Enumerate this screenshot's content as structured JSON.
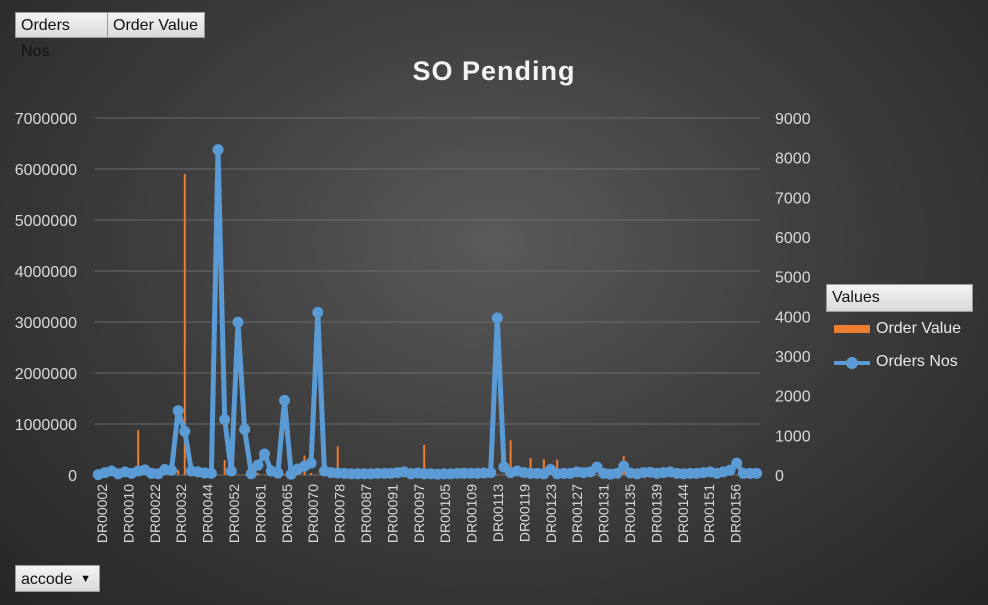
{
  "field_buttons": {
    "orders_nos": "Orders Nos",
    "order_value": "Order Value"
  },
  "filter": {
    "label": "accode",
    "arrow_icon": "dropdown-arrow-icon"
  },
  "legend": {
    "header": "Values",
    "items": [
      "Order Value",
      "Orders Nos"
    ]
  },
  "colors": {
    "order_value": "#ed7d31",
    "orders_nos": "#5b9bd5",
    "text": "#d9d9d9",
    "grid": "#6a6a6a"
  },
  "chart_data": {
    "type": "bar",
    "title": "SO Pending",
    "combo": "bar + line (secondary axis)",
    "xlabel": "",
    "ylabel": "",
    "y_ticks": [
      "0",
      "1000000",
      "2000000",
      "3000000",
      "4000000",
      "5000000",
      "6000000",
      "7000000"
    ],
    "y2_ticks": [
      "0",
      "1000",
      "2000",
      "3000",
      "4000",
      "5000",
      "6000",
      "7000",
      "8000",
      "9000"
    ],
    "ylim": [
      0,
      7000000
    ],
    "y2lim": [
      0,
      9000
    ],
    "x_tick_labels": [
      "DR00002",
      "DR00010",
      "DR00022",
      "DR00032",
      "DR00044",
      "DR00052",
      "DR00061",
      "DR00065",
      "DR00070",
      "DR00078",
      "DR00087",
      "DR00091",
      "DR00097",
      "DR00105",
      "DR00109",
      "DR00113",
      "DR00119",
      "DR00123",
      "DR00127",
      "DR00131",
      "DR00135",
      "DR00139",
      "DR00144",
      "DR00151",
      "DR00156"
    ],
    "point_count": 100,
    "series": [
      {
        "name": "Order Value",
        "axis": "primary",
        "values": [
          10000,
          20000,
          10000,
          15000,
          20000,
          10000,
          880000,
          60000,
          20000,
          10000,
          30000,
          60000,
          100000,
          5900000,
          90000,
          30000,
          20000,
          10000,
          10000,
          290000,
          20000,
          10000,
          10000,
          210000,
          40000,
          10000,
          20000,
          10000,
          20000,
          10000,
          10000,
          380000,
          40000,
          10000,
          20000,
          10000,
          560000,
          80000,
          10000,
          10000,
          10000,
          10000,
          10000,
          10000,
          10000,
          10000,
          10000,
          10000,
          10000,
          590000,
          10000,
          10000,
          10000,
          10000,
          10000,
          10000,
          10000,
          10000,
          10000,
          10000,
          10000,
          10000,
          680000,
          30000,
          10000,
          330000,
          10000,
          310000,
          10000,
          300000,
          10000,
          10000,
          10000,
          10000,
          10000,
          10000,
          10000,
          10000,
          10000,
          370000,
          10000,
          10000,
          10000,
          10000,
          10000,
          10000,
          10000,
          10000,
          10000,
          10000,
          10000,
          10000,
          10000,
          10000,
          10000,
          10000,
          10000,
          10000,
          10000,
          10000
        ]
      },
      {
        "name": "Orders Nos",
        "axis": "secondary",
        "values": [
          10,
          60,
          100,
          30,
          80,
          40,
          100,
          130,
          40,
          30,
          140,
          120,
          1620,
          1100,
          100,
          80,
          50,
          40,
          8200,
          1400,
          100,
          3850,
          1150,
          30,
          250,
          530,
          100,
          50,
          1880,
          20,
          150,
          220,
          300,
          4100,
          100,
          60,
          50,
          40,
          30,
          30,
          30,
          30,
          40,
          40,
          40,
          60,
          80,
          30,
          50,
          30,
          30,
          20,
          30,
          30,
          40,
          40,
          40,
          40,
          50,
          60,
          3960,
          200,
          60,
          100,
          60,
          40,
          40,
          30,
          140,
          30,
          40,
          40,
          80,
          60,
          80,
          200,
          40,
          20,
          40,
          220,
          50,
          30,
          60,
          70,
          40,
          60,
          80,
          40,
          30,
          40,
          40,
          60,
          80,
          40,
          80,
          120,
          300,
          40,
          40,
          40
        ]
      }
    ]
  }
}
